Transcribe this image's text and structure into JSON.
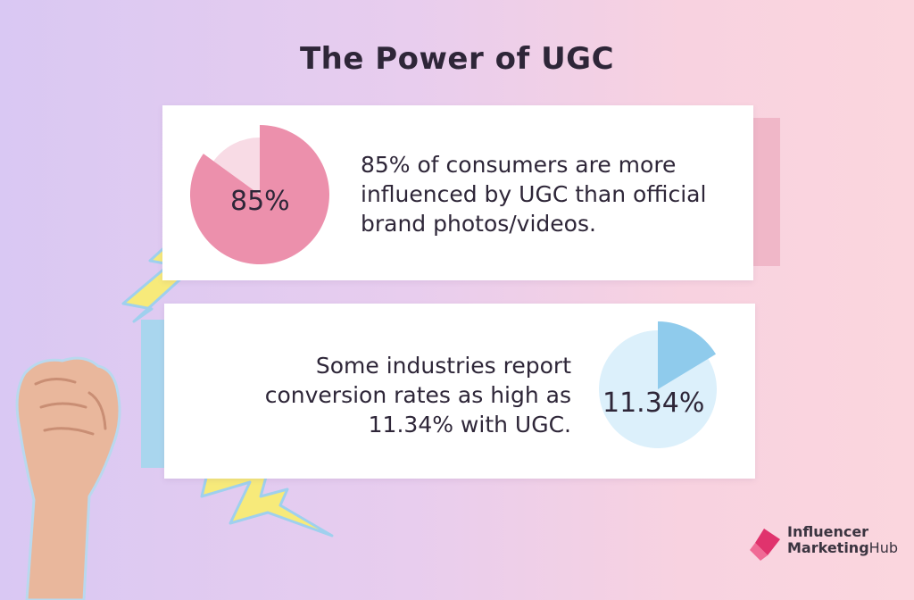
{
  "title": "The Power of UGC",
  "stats": [
    {
      "value_label": "85%",
      "percent": 85,
      "text": "85% of consumers are more influenced by UGC than official brand photos/videos."
    },
    {
      "value_label": "11.34%",
      "percent": 11.34,
      "text": "Some industries report conversion rates as high as 11.34% with UGC."
    }
  ],
  "logo": {
    "line1": "Influencer",
    "line2_bold": "Marketing",
    "line2_light": "Hub",
    "icon": "influencer-marketing-hub-logo-icon"
  },
  "colors": {
    "pink_pie": "#ec90ac",
    "pink_pie_light": "#f8dbe5",
    "blue_pie": "#8fcbec",
    "blue_pie_light": "#dcf0fb",
    "lightning": "#f7ea7a",
    "logo_accent": "#e0336d"
  }
}
